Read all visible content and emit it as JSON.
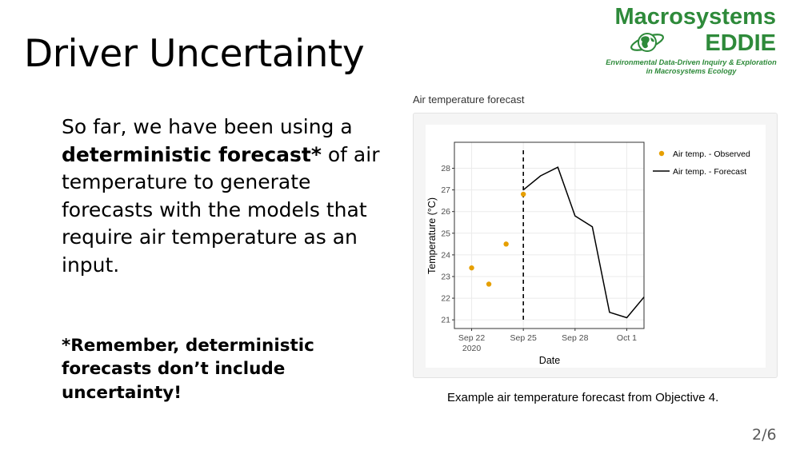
{
  "slide": {
    "title": "Driver Uncertainty",
    "page_number": "2/6"
  },
  "logo": {
    "line1": "Macrosystems",
    "line2": "EDDIE",
    "tagline1": "Environmental Data-Driven Inquiry & Exploration",
    "tagline2": "in Macrosystems Ecology",
    "icon": "globe-icon",
    "brand_color": "#2e8a3a"
  },
  "body": {
    "before_bold": "So far, we have been using a ",
    "bold": "deterministic forecast*",
    "after_bold": " of air temperature to generate forecasts with the models that require air temperature as an input."
  },
  "note": {
    "text": "*Remember, deterministic forecasts don’t include uncertainty!"
  },
  "chart_heading": "Air temperature forecast",
  "caption": "Example air temperature forecast from Objective 4.",
  "chart_data": {
    "type": "line",
    "xlabel": "Date",
    "ylabel": "Temperature (°C)",
    "x_ticks": [
      {
        "day": 0,
        "label": "Sep 22",
        "sublabel": "2020"
      },
      {
        "day": 3,
        "label": "Sep 25"
      },
      {
        "day": 6,
        "label": "Sep 28"
      },
      {
        "day": 9,
        "label": "Oct 1"
      }
    ],
    "y_ticks": [
      21,
      22,
      23,
      24,
      25,
      26,
      27,
      28
    ],
    "xlim": [
      "2020-09-21",
      "2020-10-02"
    ],
    "ylim": [
      20.6,
      29.2
    ],
    "forecast_start": "2020-09-25",
    "grid": true,
    "legend_position": "right",
    "series": [
      {
        "name": "Air temp. - Observed",
        "kind": "points",
        "color": "#e69f00",
        "points": [
          {
            "date": "2020-09-22",
            "value": 23.4
          },
          {
            "date": "2020-09-23",
            "value": 22.65
          },
          {
            "date": "2020-09-24",
            "value": 24.5
          },
          {
            "date": "2020-09-25",
            "value": 26.8
          }
        ]
      },
      {
        "name": "Air temp. - Forecast",
        "kind": "line",
        "color": "#000000",
        "points": [
          {
            "date": "2020-09-25",
            "value": 27.0
          },
          {
            "date": "2020-09-26",
            "value": 27.65
          },
          {
            "date": "2020-09-27",
            "value": 28.05
          },
          {
            "date": "2020-09-28",
            "value": 25.8
          },
          {
            "date": "2020-09-29",
            "value": 25.3
          },
          {
            "date": "2020-09-30",
            "value": 21.35
          },
          {
            "date": "2020-10-01",
            "value": 21.1
          },
          {
            "date": "2020-10-02",
            "value": 22.05
          }
        ]
      }
    ]
  }
}
